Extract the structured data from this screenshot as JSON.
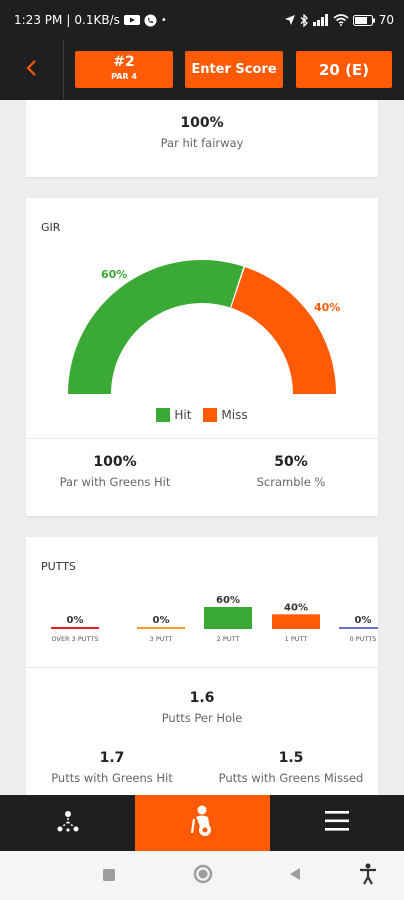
{
  "status_bar": {
    "time": "1:23 PM",
    "separator": "|",
    "speed": "0.1KB/s",
    "dot": "•",
    "battery": "70",
    "icons": [
      "youtube-icon",
      "whatsapp-icon",
      "location-arrow-icon",
      "bluetooth-icon",
      "signal-icon",
      "wifi-icon",
      "battery-icon"
    ]
  },
  "header": {
    "back_icon": "chevron-left-icon",
    "hole_number": "#2",
    "hole_par": "PAR 4",
    "enter_score": "Enter Score",
    "score": "20 (E)"
  },
  "fairway": {
    "value": "100%",
    "label": "Par hit fairway"
  },
  "gir": {
    "title": "GIR",
    "hit_percent": 60,
    "miss_percent": 40,
    "hit_label": "60%",
    "miss_label": "40%",
    "legend_hit": "Hit",
    "legend_miss": "Miss",
    "par_greens_value": "100%",
    "par_greens_label": "Par with Greens Hit",
    "scramble_value": "50%",
    "scramble_label": "Scramble %"
  },
  "putts": {
    "title": "PUTTS",
    "per_hole_value": "1.6",
    "per_hole_label": "Putts Per Hole",
    "greens_hit_value": "1.7",
    "greens_hit_label": "Putts with Greens Hit",
    "greens_missed_value": "1.5",
    "greens_missed_label": "Putts with Greens Missed"
  },
  "chart_data": {
    "type": "bar",
    "categories": [
      "OVER 3 PUTTS",
      "3 PUTT",
      "2 PUTT",
      "1 PUTT",
      "0 PUTTS"
    ],
    "values": [
      0,
      0,
      60,
      40,
      0
    ],
    "labels": [
      "0%",
      "0%",
      "60%",
      "40%",
      "0%"
    ],
    "colors": [
      "#e02020",
      "#f0a020",
      "#3aa935",
      "#ff5a06",
      "#7070d0"
    ],
    "ylim": [
      0,
      60
    ]
  },
  "colors": {
    "accent": "#ff5a06",
    "hit": "#3aa935",
    "miss": "#ff5a06",
    "dark": "#1f1f1f"
  },
  "bottom_nav": {
    "left_icon": "course-path-icon",
    "center_icon": "golfer-stats-icon",
    "right_icon": "hamburger-menu-icon"
  },
  "system_nav": {
    "recents_icon": "square-icon",
    "home_icon": "circle-icon",
    "back_icon": "triangle-back-icon",
    "accessibility_icon": "accessibility-icon"
  }
}
